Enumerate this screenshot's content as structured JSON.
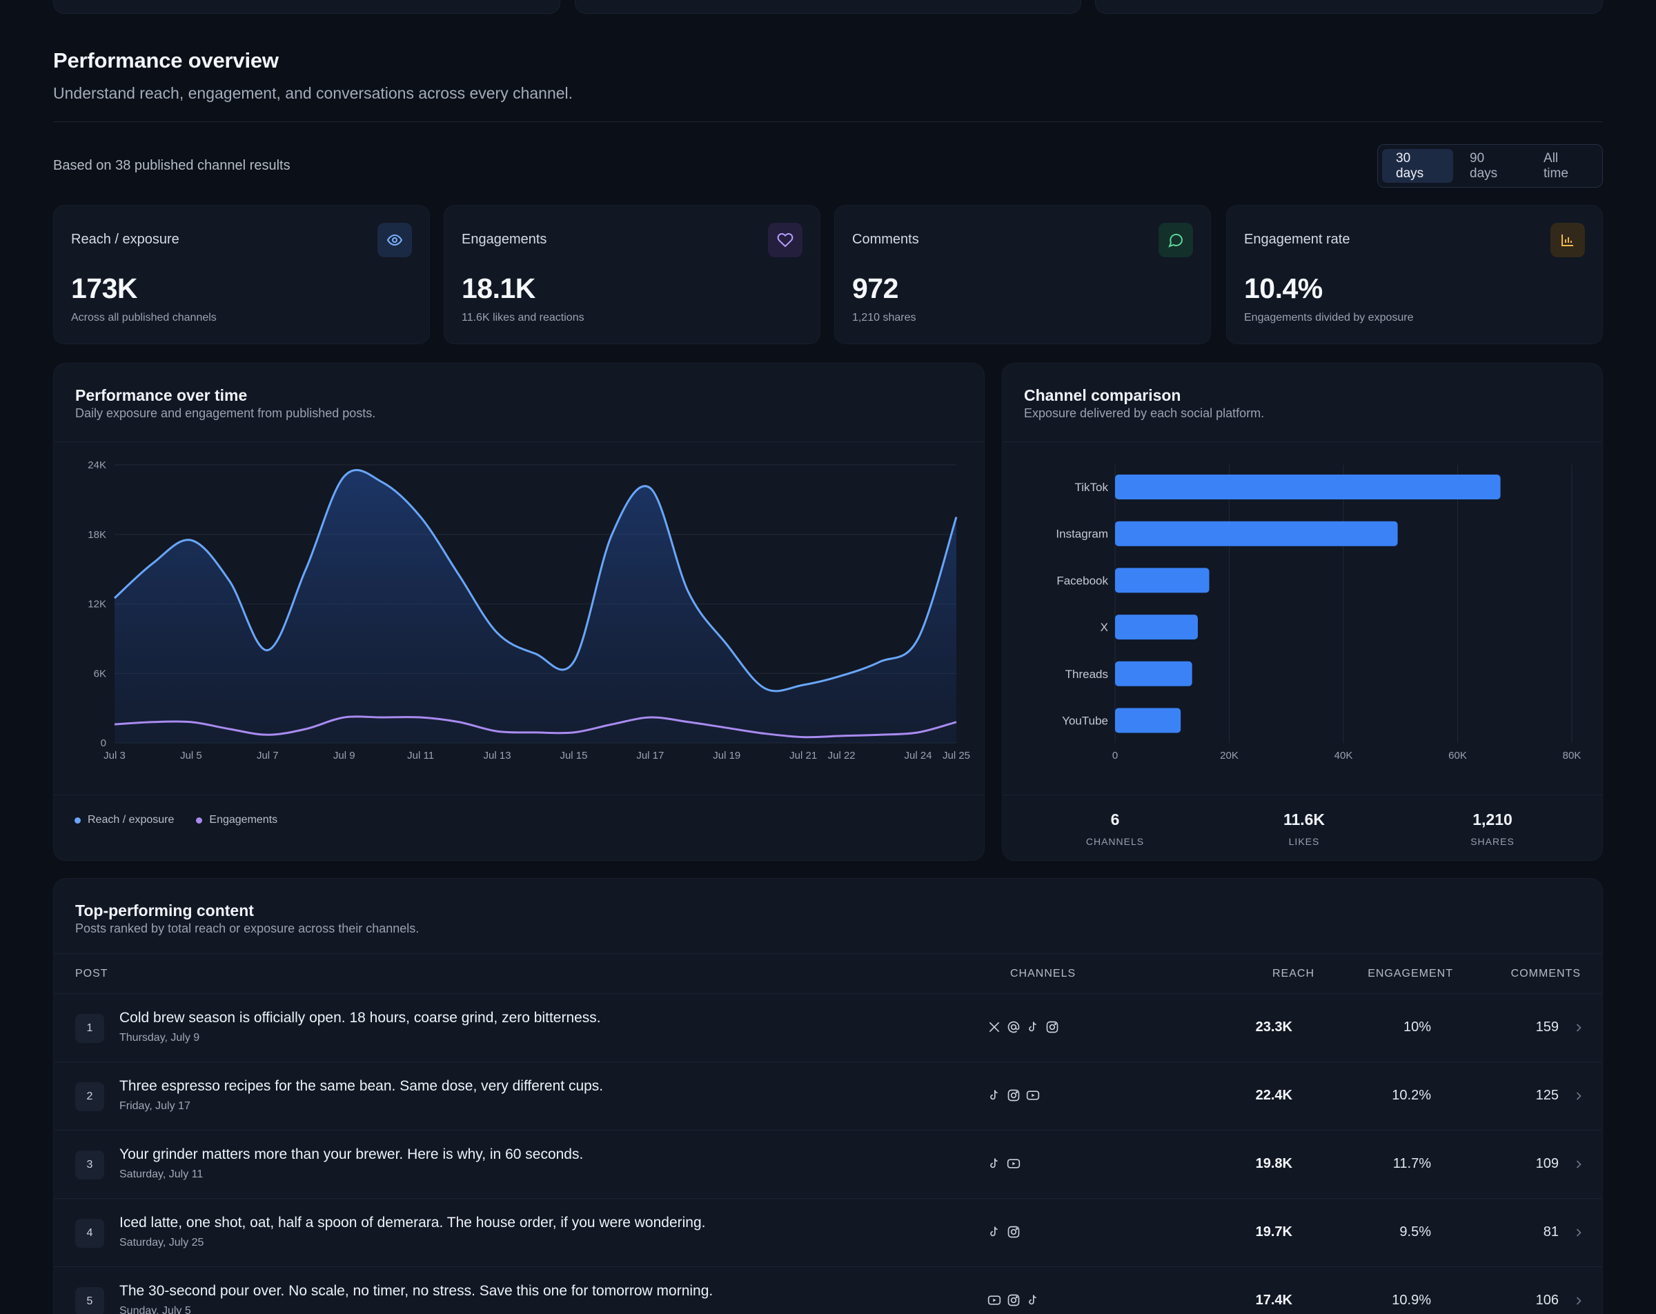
{
  "header": {
    "title": "Performance overview",
    "subtitle": "Understand reach, engagement, and conversations across every channel."
  },
  "summary_text": "Based on 38 published channel results",
  "range": {
    "options": [
      "30 days",
      "90 days",
      "All time"
    ],
    "selected": "30 days"
  },
  "kpis": [
    {
      "label": "Reach / exposure",
      "value": "173K",
      "sub": "Across all published channels",
      "icon": "eye-icon",
      "color": "#7ab0ff",
      "bg": "#1b2a44"
    },
    {
      "label": "Engagements",
      "value": "18.1K",
      "sub": "11.6K likes and reactions",
      "icon": "heart-icon",
      "color": "#b69cff",
      "bg": "#231f3d"
    },
    {
      "label": "Comments",
      "value": "972",
      "sub": "1,210 shares",
      "icon": "chat-bubble-icon",
      "color": "#5fd39a",
      "bg": "#13302a"
    },
    {
      "label": "Engagement rate",
      "value": "10.4%",
      "sub": "Engagements divided by exposure",
      "icon": "bar-chart-icon",
      "color": "#f0b84a",
      "bg": "#33291a"
    }
  ],
  "over_time": {
    "title": "Performance over time",
    "subtitle": "Daily exposure and engagement from published posts.",
    "legend": [
      "Reach / exposure",
      "Engagements"
    ]
  },
  "channels": {
    "title": "Channel comparison",
    "subtitle": "Exposure delivered by each social platform.",
    "stats": [
      {
        "value": "6",
        "label": "CHANNELS"
      },
      {
        "value": "11.6K",
        "label": "LIKES"
      },
      {
        "value": "1,210",
        "label": "SHARES"
      }
    ]
  },
  "chart_data": [
    {
      "type": "area",
      "x": [
        "Jul 3",
        "Jul 4",
        "Jul 5",
        "Jul 6",
        "Jul 7",
        "Jul 8",
        "Jul 9",
        "Jul 10",
        "Jul 11",
        "Jul 12",
        "Jul 13",
        "Jul 14",
        "Jul 15",
        "Jul 16",
        "Jul 17",
        "Jul 18",
        "Jul 19",
        "Jul 20",
        "Jul 21",
        "Jul 22",
        "Jul 23",
        "Jul 24",
        "Jul 25"
      ],
      "x_tick_labels": [
        "Jul 3",
        "Jul 5",
        "Jul 7",
        "Jul 9",
        "Jul 11",
        "Jul 13",
        "Jul 15",
        "Jul 17",
        "Jul 19",
        "Jul 21",
        "Jul 22",
        "Jul 24",
        "Jul 25"
      ],
      "y_ticks": [
        "0",
        "6K",
        "12K",
        "18K",
        "24K"
      ],
      "ylim": [
        0,
        24000
      ],
      "grid": true,
      "legend_position": "bottom-left",
      "series": [
        {
          "name": "Reach / exposure",
          "color": "#6aa6f8",
          "values": [
            12500,
            15500,
            17500,
            14000,
            8000,
            15000,
            23000,
            22500,
            19500,
            14500,
            9500,
            7700,
            7000,
            18000,
            22000,
            13000,
            8500,
            4700,
            5000,
            5800,
            7000,
            9000,
            19500
          ]
        },
        {
          "name": "Engagements",
          "color": "#a98bf0",
          "values": [
            1600,
            1800,
            1800,
            1200,
            700,
            1200,
            2200,
            2200,
            2200,
            1800,
            1000,
            900,
            900,
            1600,
            2200,
            1800,
            1300,
            800,
            500,
            600,
            700,
            900,
            1800
          ]
        }
      ]
    },
    {
      "type": "bar",
      "orientation": "horizontal",
      "categories": [
        "TikTok",
        "Instagram",
        "Facebook",
        "X",
        "Threads",
        "YouTube"
      ],
      "values": [
        67500,
        49500,
        16500,
        14500,
        13500,
        11500
      ],
      "x_ticks": [
        "0",
        "20K",
        "40K",
        "60K",
        "80K"
      ],
      "xlim": [
        0,
        80000
      ],
      "grid": true,
      "color": "#3b82f6"
    }
  ],
  "table": {
    "title": "Top-performing content",
    "subtitle": "Posts ranked by total reach or exposure across their channels.",
    "columns": {
      "post": "POST",
      "channels": "CHANNELS",
      "reach": "REACH",
      "engagement": "ENGAGEMENT",
      "comments": "COMMENTS"
    },
    "rows": [
      {
        "rank": "1",
        "title": "Cold brew season is officially open. 18 hours, coarse grind, zero bitterness.",
        "date": "Thursday, July 9",
        "channels": [
          "x-icon",
          "threads-icon",
          "tiktok-icon",
          "instagram-icon"
        ],
        "reach": "23.3K",
        "engagement": "10%",
        "comments": "159"
      },
      {
        "rank": "2",
        "title": "Three espresso recipes for the same bean. Same dose, very different cups.",
        "date": "Friday, July 17",
        "channels": [
          "tiktok-icon",
          "instagram-icon",
          "youtube-icon"
        ],
        "reach": "22.4K",
        "engagement": "10.2%",
        "comments": "125"
      },
      {
        "rank": "3",
        "title": "Your grinder matters more than your brewer. Here is why, in 60 seconds.",
        "date": "Saturday, July 11",
        "channels": [
          "tiktok-icon",
          "youtube-icon"
        ],
        "reach": "19.8K",
        "engagement": "11.7%",
        "comments": "109"
      },
      {
        "rank": "4",
        "title": "Iced latte, one shot, oat, half a spoon of demerara. The house order, if you were wondering.",
        "date": "Saturday, July 25",
        "channels": [
          "tiktok-icon",
          "instagram-icon"
        ],
        "reach": "19.7K",
        "engagement": "9.5%",
        "comments": "81"
      },
      {
        "rank": "5",
        "title": "The 30-second pour over. No scale, no timer, no stress. Save this one for tomorrow morning.",
        "date": "Sunday, July 5",
        "channels": [
          "youtube-icon",
          "instagram-icon",
          "tiktok-icon"
        ],
        "reach": "17.4K",
        "engagement": "10.9%",
        "comments": "106"
      }
    ]
  }
}
